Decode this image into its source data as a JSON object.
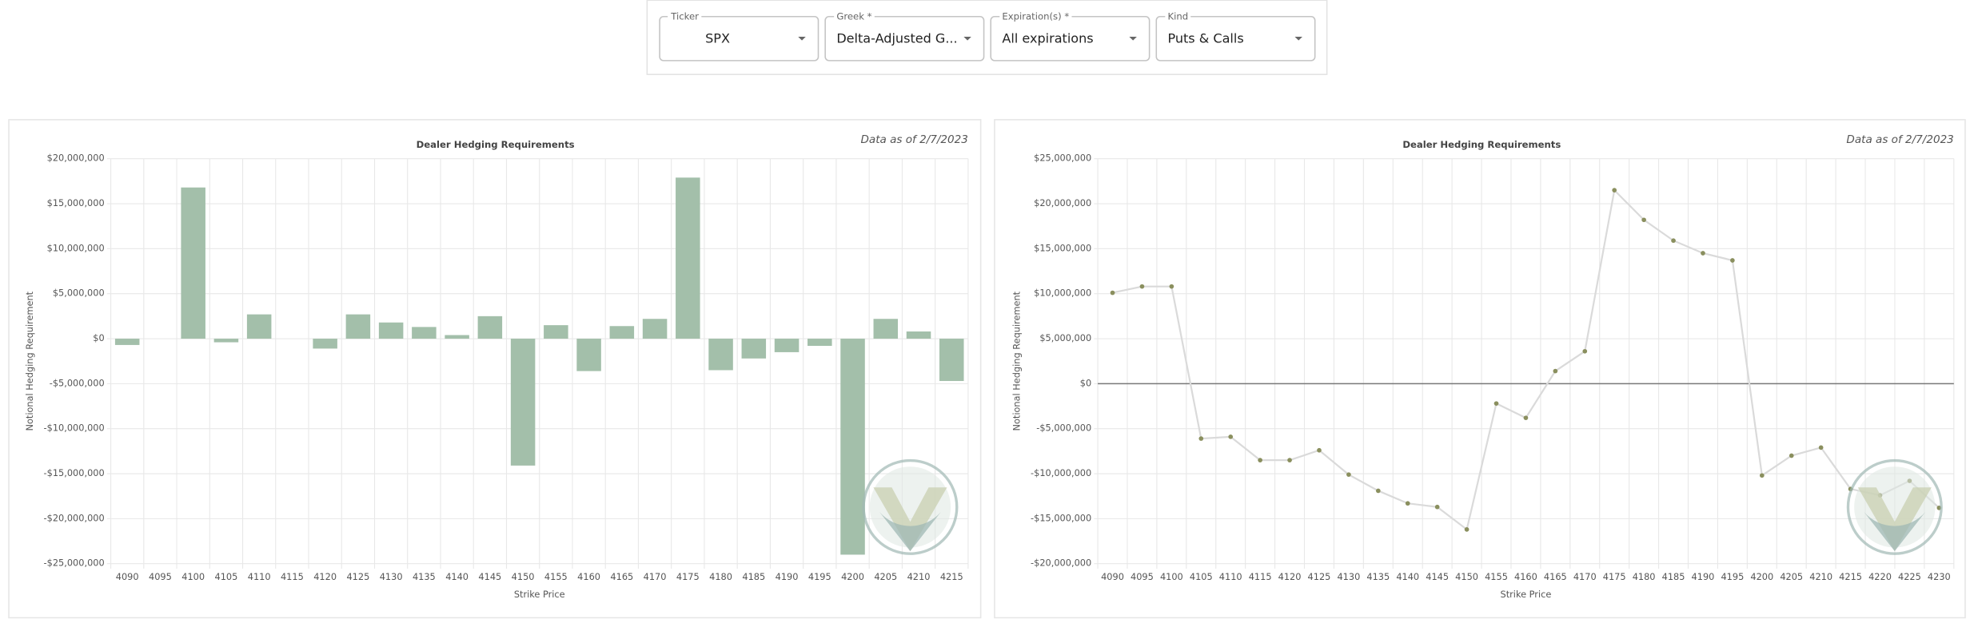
{
  "filters": [
    {
      "label": "Ticker",
      "value": "SPX"
    },
    {
      "label": "Greek *",
      "value": "Delta-Adjusted G..."
    },
    {
      "label": "Expiration(s) *",
      "value": "All expirations"
    },
    {
      "label": "Kind",
      "value": "Puts & Calls"
    }
  ],
  "chart_data": [
    {
      "type": "bar",
      "title": "Dealer Hedging Requirements",
      "note": "Data as of 2/7/2023",
      "x_label": "Strike Price",
      "y_label": "Notional Hedging Requirement",
      "categories": [
        "4090",
        "4095",
        "4100",
        "4105",
        "4110",
        "4115",
        "4120",
        "4125",
        "4130",
        "4135",
        "4140",
        "4145",
        "4150",
        "4155",
        "4160",
        "4165",
        "4170",
        "4175",
        "4180",
        "4185",
        "4190",
        "4195",
        "4200",
        "4205",
        "4210",
        "4215"
      ],
      "values": [
        -700000,
        0,
        16800000,
        -400000,
        2700000,
        0,
        -1100000,
        2700000,
        1800000,
        1300000,
        400000,
        2500000,
        -14100000,
        1500000,
        -3600000,
        1400000,
        2200000,
        17900000,
        -3500000,
        -2200000,
        -1500000,
        -800000,
        -24000000,
        2200000,
        800000,
        -4700000
      ],
      "color": "#a3bfaa",
      "grid": true,
      "zero_line": false,
      "ylim": [
        -25000000,
        20000000
      ],
      "yticks": [
        {
          "value": -25000000,
          "label": "-$25,000,000"
        },
        {
          "value": -20000000,
          "label": "-$20,000,000"
        },
        {
          "value": -15000000,
          "label": "-$15,000,000"
        },
        {
          "value": -10000000,
          "label": "-$10,000,000"
        },
        {
          "value": -5000000,
          "label": "-$5,000,000"
        },
        {
          "value": 0,
          "label": "$0"
        },
        {
          "value": 5000000,
          "label": "$5,000,000"
        },
        {
          "value": 10000000,
          "label": "$10,000,000"
        },
        {
          "value": 15000000,
          "label": "$15,000,000"
        },
        {
          "value": 20000000,
          "label": "$20,000,000"
        }
      ]
    },
    {
      "type": "line",
      "title": "Dealer Hedging Requirements",
      "note": "Data as of 2/7/2023",
      "x_label": "Strike Price",
      "y_label": "Notional Hedging Requirement",
      "categories": [
        "4090",
        "4095",
        "4100",
        "4105",
        "4110",
        "4115",
        "4120",
        "4125",
        "4130",
        "4135",
        "4140",
        "4145",
        "4150",
        "4155",
        "4160",
        "4165",
        "4170",
        "4175",
        "4180",
        "4185",
        "4190",
        "4195",
        "4200",
        "4205",
        "4210",
        "4215",
        "4220",
        "4225",
        "4230"
      ],
      "values": [
        10100000,
        10800000,
        10800000,
        -6100000,
        -5900000,
        -8500000,
        -8500000,
        -7400000,
        -10100000,
        -11900000,
        -13300000,
        -13700000,
        -16200000,
        -2200000,
        -3800000,
        1400000,
        3600000,
        21500000,
        18200000,
        15900000,
        14500000,
        13700000,
        -10200000,
        -8000000,
        -7100000,
        -11700000,
        -12400000,
        -10800000,
        -13800000
      ],
      "color": "#8a8f5e",
      "line_color": "#dadada",
      "grid": true,
      "zero_line": true,
      "ylim": [
        -20000000,
        25000000
      ],
      "yticks": [
        {
          "value": -20000000,
          "label": "-$20,000,000"
        },
        {
          "value": -15000000,
          "label": "-$15,000,000"
        },
        {
          "value": -10000000,
          "label": "-$10,000,000"
        },
        {
          "value": -5000000,
          "label": "-$5,000,000"
        },
        {
          "value": 0,
          "label": "$0"
        },
        {
          "value": 5000000,
          "label": "$5,000,000"
        },
        {
          "value": 10000000,
          "label": "$10,000,000"
        },
        {
          "value": 15000000,
          "label": "$15,000,000"
        },
        {
          "value": 20000000,
          "label": "$20,000,000"
        },
        {
          "value": 25000000,
          "label": "$25,000,000"
        }
      ]
    }
  ]
}
